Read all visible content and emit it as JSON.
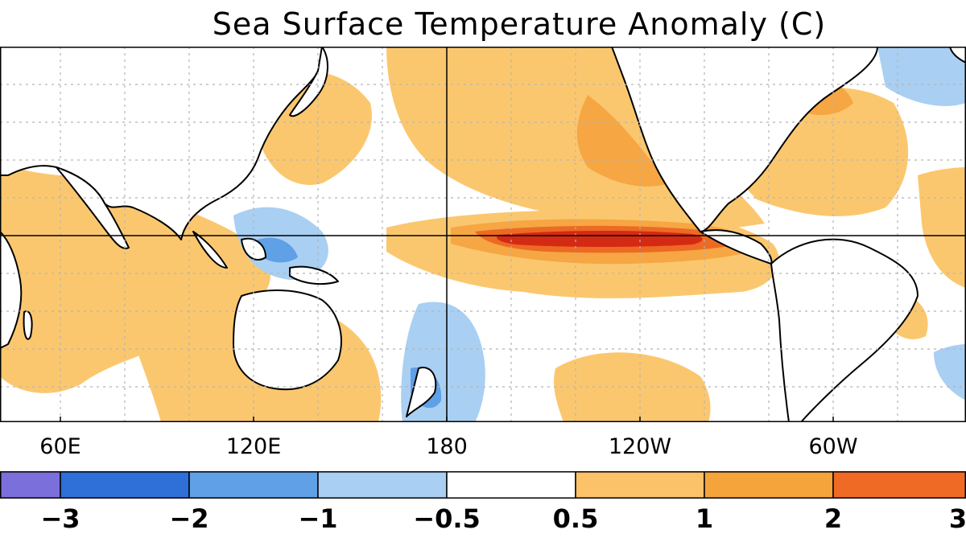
{
  "title": "Sea Surface Temperature Anomaly (C)",
  "longitude_labels": [
    "60E",
    "120E",
    "180",
    "120W",
    "60W"
  ],
  "colorbar": {
    "labels": [
      "−3",
      "−2",
      "−1",
      "−0.5",
      "0.5",
      "1",
      "2",
      "3"
    ],
    "colors": [
      "#7b6fdc",
      "#2e6fd8",
      "#5fa0e6",
      "#a9cff2",
      "#ffffff",
      "#fbc269",
      "#f5a43c",
      "#ef6a24"
    ]
  },
  "colors": {
    "ocean_neutral": "#ffffff",
    "weak_warm": "#fbc76e",
    "warm": "#f6a643",
    "strong_warm": "#ec6a24",
    "very_strong_warm": "#d42a14",
    "weak_cool": "#a9cff2",
    "cool": "#5fa0e6",
    "land": "#ffffff",
    "coastline": "#000000",
    "grid": "#b5b5b5"
  }
}
